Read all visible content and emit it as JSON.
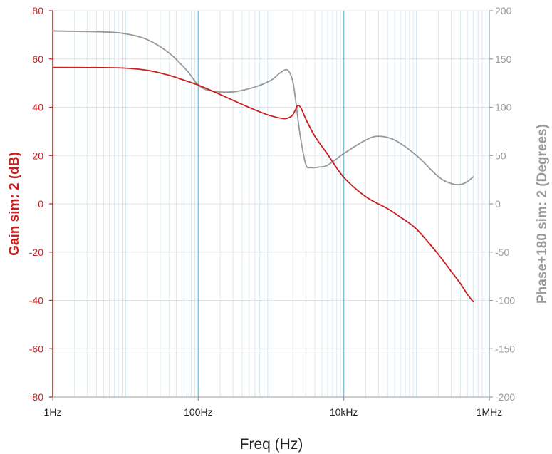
{
  "chart_data": {
    "type": "line",
    "xlabel": "Freq (Hz)",
    "ylabel_left": "Gain sim: 2 (dB)",
    "ylabel_right": "Phase+180 sim: 2 (Degrees)",
    "x_scale": "log",
    "xlim": [
      1,
      1000000
    ],
    "ylim_left": [
      -80,
      80
    ],
    "ylim_right": [
      -200,
      200
    ],
    "x_ticks": [
      {
        "value": 1,
        "label": "1Hz"
      },
      {
        "value": 100,
        "label": "100Hz"
      },
      {
        "value": 10000,
        "label": "10kHz"
      },
      {
        "value": 1000000,
        "label": "1MHz"
      }
    ],
    "left_ticks": [
      {
        "value": 80,
        "label": "80"
      },
      {
        "value": 60,
        "label": "60"
      },
      {
        "value": 40,
        "label": "40"
      },
      {
        "value": 20,
        "label": "20"
      },
      {
        "value": 0,
        "label": "0"
      },
      {
        "value": -20,
        "label": "-20"
      },
      {
        "value": -40,
        "label": "-40"
      },
      {
        "value": -60,
        "label": "-60"
      },
      {
        "value": -80,
        "label": "-80"
      }
    ],
    "right_ticks": [
      {
        "value": 200,
        "label": "200"
      },
      {
        "value": 150,
        "label": "150"
      },
      {
        "value": 100,
        "label": "100"
      },
      {
        "value": 50,
        "label": "50"
      },
      {
        "value": 0,
        "label": "0"
      },
      {
        "value": -50,
        "label": "-50"
      },
      {
        "value": -100,
        "label": "-100"
      },
      {
        "value": -150,
        "label": "-150"
      },
      {
        "value": -200,
        "label": "-200"
      }
    ],
    "grid": true,
    "series": [
      {
        "axis": "left",
        "color": "#c81e1e",
        "points": [
          [
            1,
            56.5
          ],
          [
            5,
            56.4
          ],
          [
            10,
            56.2
          ],
          [
            20,
            55.3
          ],
          [
            40,
            53.2
          ],
          [
            70,
            50.8
          ],
          [
            100,
            49.2
          ],
          [
            200,
            45.3
          ],
          [
            400,
            41.2
          ],
          [
            700,
            38.1
          ],
          [
            1000,
            36.4
          ],
          [
            1500,
            35.3
          ],
          [
            1800,
            35.8
          ],
          [
            2000,
            37
          ],
          [
            2200,
            39.3
          ],
          [
            2350,
            40.8
          ],
          [
            2600,
            39.5
          ],
          [
            3000,
            35.2
          ],
          [
            4000,
            28
          ],
          [
            6000,
            20.5
          ],
          [
            10000,
            11
          ],
          [
            20000,
            3
          ],
          [
            40000,
            -2
          ],
          [
            60000,
            -5.5
          ],
          [
            100000,
            -10.5
          ],
          [
            200000,
            -21
          ],
          [
            300000,
            -28
          ],
          [
            400000,
            -33
          ],
          [
            500000,
            -37.5
          ],
          [
            600000,
            -40.5
          ]
        ]
      },
      {
        "axis": "right",
        "color": "#999999",
        "points": [
          [
            1,
            179
          ],
          [
            5,
            178
          ],
          [
            10,
            176
          ],
          [
            20,
            170
          ],
          [
            40,
            156
          ],
          [
            70,
            138
          ],
          [
            100,
            123
          ],
          [
            150,
            117
          ],
          [
            300,
            116
          ],
          [
            600,
            121
          ],
          [
            1000,
            128
          ],
          [
            1300,
            135
          ],
          [
            1600,
            139
          ],
          [
            1800,
            136
          ],
          [
            2000,
            126
          ],
          [
            2200,
            105
          ],
          [
            2500,
            72
          ],
          [
            3000,
            41
          ],
          [
            3500,
            37.5
          ],
          [
            4500,
            38
          ],
          [
            6000,
            40
          ],
          [
            10000,
            52
          ],
          [
            20000,
            66
          ],
          [
            30000,
            70
          ],
          [
            50000,
            66
          ],
          [
            100000,
            50
          ],
          [
            200000,
            28
          ],
          [
            300000,
            21
          ],
          [
            400000,
            20
          ],
          [
            500000,
            23
          ],
          [
            600000,
            28
          ]
        ]
      }
    ]
  }
}
